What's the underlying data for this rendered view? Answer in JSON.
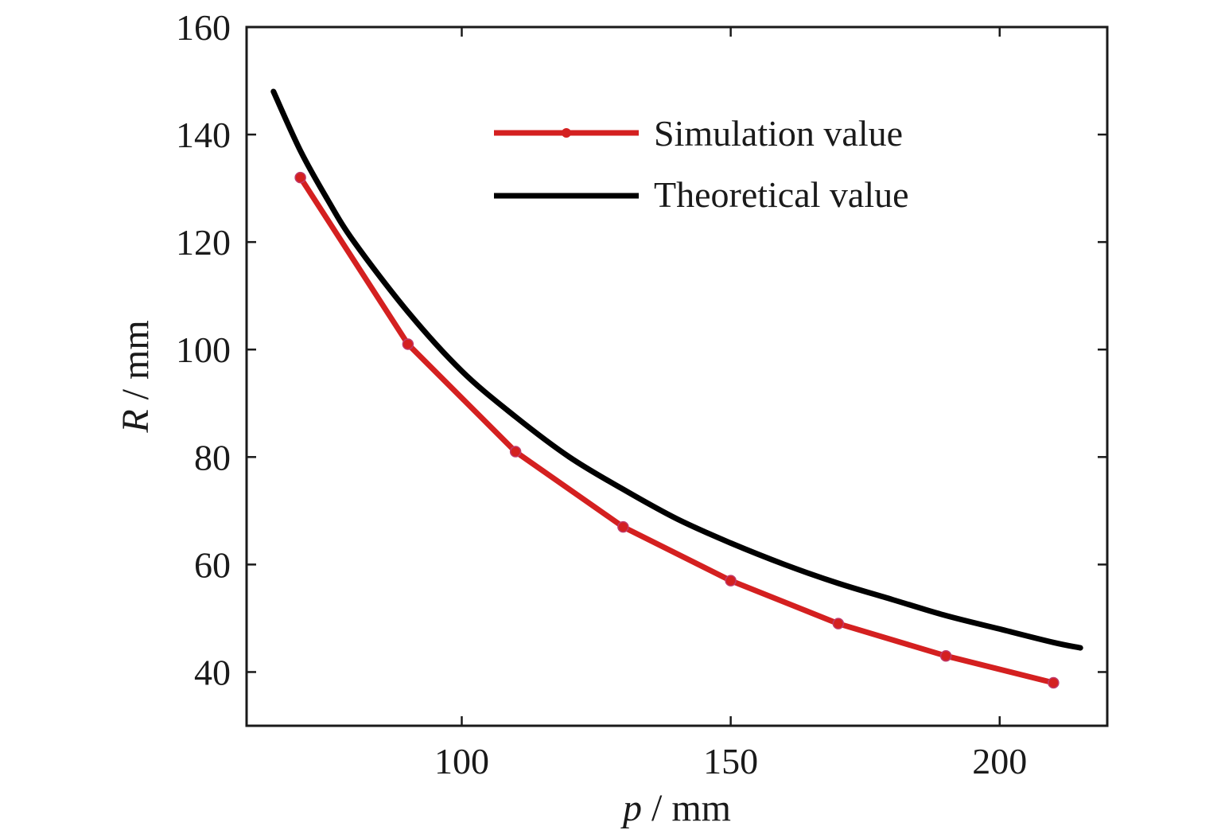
{
  "chart_data": {
    "type": "line",
    "xlabel_var": "p",
    "xlabel_unit": " / mm",
    "ylabel_var": "R",
    "ylabel_unit": " / mm",
    "xlim": [
      60,
      220
    ],
    "ylim": [
      30,
      160
    ],
    "xticks": [
      100,
      150,
      200
    ],
    "yticks": [
      40,
      60,
      80,
      100,
      120,
      140,
      160
    ],
    "grid": false,
    "legend_position": "top-right",
    "series": [
      {
        "name": "Simulation value",
        "color": "#d42020",
        "marker": "circle",
        "x": [
          70,
          90,
          110,
          130,
          150,
          170,
          190,
          210
        ],
        "y": [
          132,
          101,
          81,
          67,
          57,
          49,
          43,
          38
        ]
      },
      {
        "name": "Theoretical value",
        "color": "#000000",
        "marker": "none",
        "x": [
          65,
          70,
          75,
          80,
          90,
          100,
          110,
          120,
          130,
          140,
          150,
          160,
          170,
          180,
          190,
          200,
          210,
          215
        ],
        "y": [
          148,
          137,
          128,
          120,
          107,
          96,
          87.5,
          80,
          74,
          68.5,
          64,
          60,
          56.5,
          53.5,
          50.5,
          48,
          45.5,
          44.5
        ]
      }
    ]
  }
}
